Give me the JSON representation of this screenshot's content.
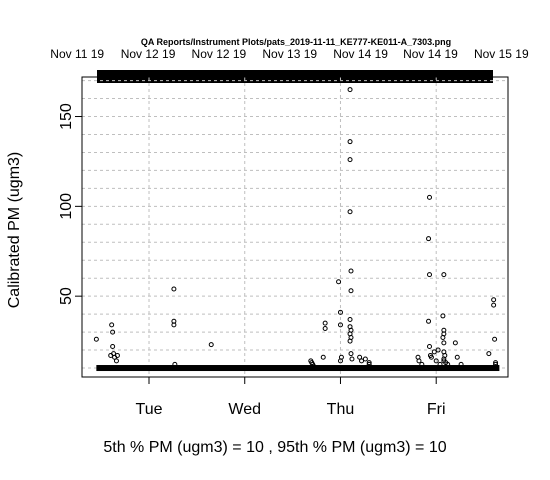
{
  "chart_data": {
    "type": "scatter",
    "title": "QA Reports/Instrument Plots/pats_2019-11-11_KE777-KE011-A_7303.png",
    "ylabel": "Calibrated PM (ugm3)",
    "xlabel": "",
    "x_unit": "days (Mon Nov 11 2019 = 0)",
    "xlim": [
      0.3,
      4.75
    ],
    "ylim": [
      5,
      172
    ],
    "yticks": [
      50,
      100,
      150
    ],
    "top_axis_labels": [
      "Nov 11 19",
      "Nov 12 19",
      "Nov 12 19",
      "Nov 13 19",
      "Nov 14 19",
      "Nov 14 19",
      "Nov 15 19"
    ],
    "top_axis_positions": [
      0.25,
      0.99,
      1.73,
      2.47,
      3.21,
      3.94,
      4.68
    ],
    "bottom_axis_labels": [
      "Tue",
      "Wed",
      "Thu",
      "Fri"
    ],
    "bottom_axis_positions": [
      1,
      2,
      3,
      4
    ],
    "grid": true,
    "baseline": {
      "x_start": 0.45,
      "x_end": 4.66,
      "y": 10
    },
    "points": [
      [
        0.45,
        26
      ],
      [
        0.6,
        17
      ],
      [
        0.61,
        34
      ],
      [
        0.62,
        30
      ],
      [
        0.62,
        22
      ],
      [
        0.63,
        18
      ],
      [
        0.64,
        16
      ],
      [
        0.66,
        14
      ],
      [
        0.67,
        17
      ],
      [
        1.26,
        54
      ],
      [
        1.26,
        36
      ],
      [
        1.26,
        34
      ],
      [
        1.27,
        12
      ],
      [
        1.65,
        23
      ],
      [
        2.69,
        14
      ],
      [
        2.7,
        13
      ],
      [
        2.71,
        12
      ],
      [
        2.72,
        11
      ],
      [
        2.82,
        16
      ],
      [
        2.84,
        35
      ],
      [
        2.84,
        32
      ],
      [
        2.98,
        58
      ],
      [
        3.0,
        41
      ],
      [
        3.0,
        34
      ],
      [
        3.0,
        14
      ],
      [
        3.01,
        16
      ],
      [
        3.1,
        165
      ],
      [
        3.1,
        136
      ],
      [
        3.1,
        126
      ],
      [
        3.1,
        97
      ],
      [
        3.11,
        64
      ],
      [
        3.11,
        53
      ],
      [
        3.1,
        37
      ],
      [
        3.1,
        33
      ],
      [
        3.11,
        31
      ],
      [
        3.1,
        29
      ],
      [
        3.11,
        27
      ],
      [
        3.1,
        25
      ],
      [
        3.11,
        18
      ],
      [
        3.12,
        15
      ],
      [
        3.2,
        16
      ],
      [
        3.22,
        14
      ],
      [
        3.26,
        15
      ],
      [
        3.3,
        12
      ],
      [
        3.3,
        13
      ],
      [
        3.81,
        16
      ],
      [
        3.82,
        14
      ],
      [
        3.85,
        12
      ],
      [
        3.93,
        105
      ],
      [
        3.92,
        82
      ],
      [
        3.93,
        62
      ],
      [
        3.92,
        36
      ],
      [
        3.93,
        22
      ],
      [
        3.94,
        17
      ],
      [
        3.95,
        16
      ],
      [
        3.98,
        19
      ],
      [
        4.0,
        14
      ],
      [
        4.02,
        20
      ],
      [
        4.04,
        12
      ],
      [
        4.08,
        62
      ],
      [
        4.07,
        39
      ],
      [
        4.08,
        31
      ],
      [
        4.08,
        29
      ],
      [
        4.07,
        27
      ],
      [
        4.08,
        24
      ],
      [
        4.08,
        19
      ],
      [
        4.09,
        17
      ],
      [
        4.08,
        15
      ],
      [
        4.08,
        14
      ],
      [
        4.1,
        13
      ],
      [
        4.12,
        12
      ],
      [
        4.2,
        24
      ],
      [
        4.22,
        16
      ],
      [
        4.26,
        12
      ],
      [
        4.55,
        18
      ],
      [
        4.6,
        48
      ],
      [
        4.6,
        45
      ],
      [
        4.61,
        26
      ],
      [
        4.62,
        13
      ],
      [
        4.62,
        12
      ]
    ]
  },
  "footer": "5th % PM (ugm3) =  10 , 95th % PM (ugm3)  =  10"
}
